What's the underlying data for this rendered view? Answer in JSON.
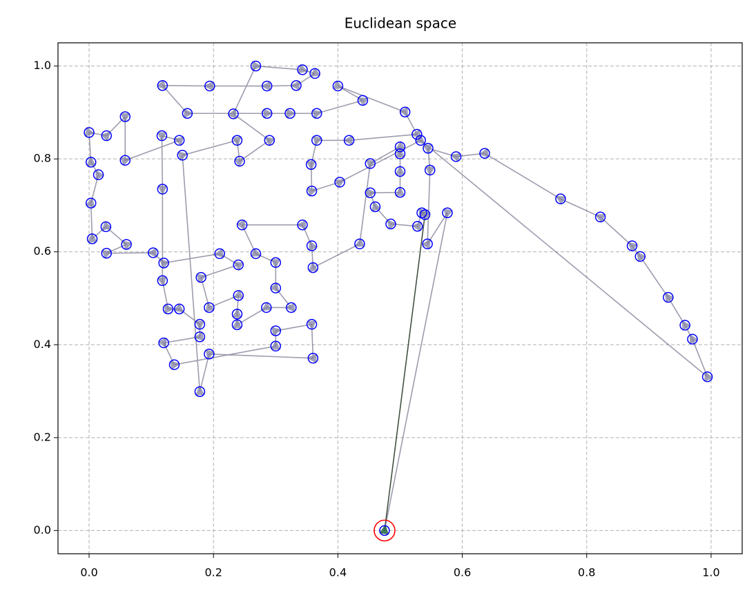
{
  "chart_data": {
    "type": "route",
    "title": "Euclidean space",
    "xlim": [
      -0.05,
      1.05
    ],
    "ylim": [
      -0.05,
      1.05
    ],
    "xticks": [
      {
        "value": 0,
        "label": "0.0"
      },
      {
        "value": 0.2,
        "label": "0.2"
      },
      {
        "value": 0.4,
        "label": "0.4"
      },
      {
        "value": 0.6,
        "label": "0.6"
      },
      {
        "value": 0.8,
        "label": "0.8"
      },
      {
        "value": 1,
        "label": "1.0"
      }
    ],
    "yticks": [
      {
        "value": 0,
        "label": "0.0"
      },
      {
        "value": 0.2,
        "label": "0.2"
      },
      {
        "value": 0.4,
        "label": "0.4"
      },
      {
        "value": 0.6,
        "label": "0.6"
      },
      {
        "value": 0.8,
        "label": "0.8"
      },
      {
        "value": 1,
        "label": "1.0"
      }
    ],
    "grid": true,
    "closed": true,
    "line_color": "#5a5a78",
    "first_segment_color": "#223322",
    "point_color": "#0000ff",
    "arrow_color": "#8080a0",
    "start_color": "#ff0000",
    "start_arrow_color": "#2e6b4a",
    "x": [
      0.475,
      0.54,
      0.535,
      0.528,
      0.485,
      0.46,
      0.452,
      0.5,
      0.5,
      0.5,
      0.5,
      0.452,
      0.435,
      0.36,
      0.358,
      0.343,
      0.246,
      0.268,
      0.3,
      0.3,
      0.325,
      0.285,
      0.238,
      0.238,
      0.24,
      0.193,
      0.18,
      0.24,
      0.21,
      0.12,
      0.103,
      0.028,
      0.06,
      0.027,
      0.005,
      0.003,
      0.015,
      0.003,
      0,
      0.028,
      0.058,
      0.058,
      0.145,
      0.117,
      0.118,
      0.118,
      0.127,
      0.145,
      0.178,
      0.178,
      0.12,
      0.137,
      0.3,
      0.3,
      0.358,
      0.36,
      0.193,
      0.178,
      0.15,
      0.238,
      0.242,
      0.29,
      0.232,
      0.268,
      0.343,
      0.363,
      0.333,
      0.286,
      0.194,
      0.118,
      0.158,
      0.286,
      0.323,
      0.366,
      0.44,
      0.4,
      0.508,
      0.527,
      0.418,
      0.366,
      0.357,
      0.358,
      0.403,
      0.533,
      0.994,
      0.97,
      0.958,
      0.931,
      0.886,
      0.873,
      0.822,
      0.758,
      0.636,
      0.59,
      0.545,
      0.548,
      0.544,
      0.576
    ],
    "y": [
      0,
      0.68,
      0.684,
      0.655,
      0.66,
      0.697,
      0.727,
      0.728,
      0.773,
      0.811,
      0.826,
      0.79,
      0.617,
      0.566,
      0.613,
      0.658,
      0.658,
      0.596,
      0.577,
      0.522,
      0.48,
      0.48,
      0.443,
      0.466,
      0.506,
      0.48,
      0.545,
      0.572,
      0.596,
      0.576,
      0.598,
      0.597,
      0.616,
      0.654,
      0.628,
      0.705,
      0.766,
      0.793,
      0.857,
      0.85,
      0.891,
      0.797,
      0.84,
      0.85,
      0.735,
      0.538,
      0.477,
      0.477,
      0.444,
      0.417,
      0.404,
      0.357,
      0.397,
      0.43,
      0.444,
      0.371,
      0.38,
      0.299,
      0.808,
      0.84,
      0.795,
      0.84,
      0.897,
      1.0,
      0.992,
      0.984,
      0.958,
      0.957,
      0.957,
      0.958,
      0.898,
      0.898,
      0.898,
      0.898,
      0.926,
      0.957,
      0.901,
      0.853,
      0.84,
      0.84,
      0.788,
      0.731,
      0.75,
      0.84,
      0.331,
      0.412,
      0.442,
      0.502,
      0.59,
      0.613,
      0.675,
      0.714,
      0.812,
      0.805,
      0.823,
      0.776,
      0.617,
      0.684
    ]
  }
}
